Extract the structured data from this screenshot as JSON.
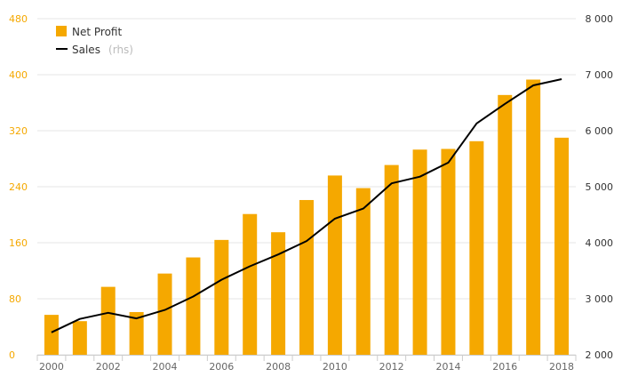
{
  "chart_data": {
    "type": "bar+line",
    "x": [
      2000,
      2001,
      2002,
      2003,
      2004,
      2005,
      2006,
      2007,
      2008,
      2009,
      2010,
      2011,
      2012,
      2013,
      2014,
      2015,
      2016,
      2017,
      2018
    ],
    "x_tick_labels": [
      "2000",
      "2002",
      "2004",
      "2006",
      "2008",
      "2010",
      "2012",
      "2014",
      "2016",
      "2018"
    ],
    "series": [
      {
        "name": "Net Profit",
        "type": "bar",
        "axis": "left",
        "color": "#f5a800",
        "values": [
          57,
          48,
          97,
          61,
          116,
          139,
          164,
          201,
          175,
          221,
          256,
          238,
          271,
          293,
          294,
          305,
          371,
          393,
          310
        ]
      },
      {
        "name": "Sales",
        "name_suffix": "(rhs)",
        "type": "line",
        "axis": "right",
        "color": "#000000",
        "values": [
          2400,
          2640,
          2750,
          2650,
          2800,
          3040,
          3340,
          3580,
          3790,
          4030,
          4430,
          4610,
          5060,
          5180,
          5430,
          6130,
          6480,
          6810,
          6920
        ]
      }
    ],
    "y_left": {
      "min": 0,
      "max": 480,
      "ticks": [
        "0",
        "80",
        "160",
        "240",
        "320",
        "400",
        "480"
      ],
      "color": "#f5a800"
    },
    "y_right": {
      "min": 2000,
      "max": 8000,
      "ticks": [
        "2 000",
        "3 000",
        "4 000",
        "5 000",
        "6 000",
        "7 000",
        "8 000"
      ]
    },
    "grid": true,
    "legend_position": "top-left"
  }
}
